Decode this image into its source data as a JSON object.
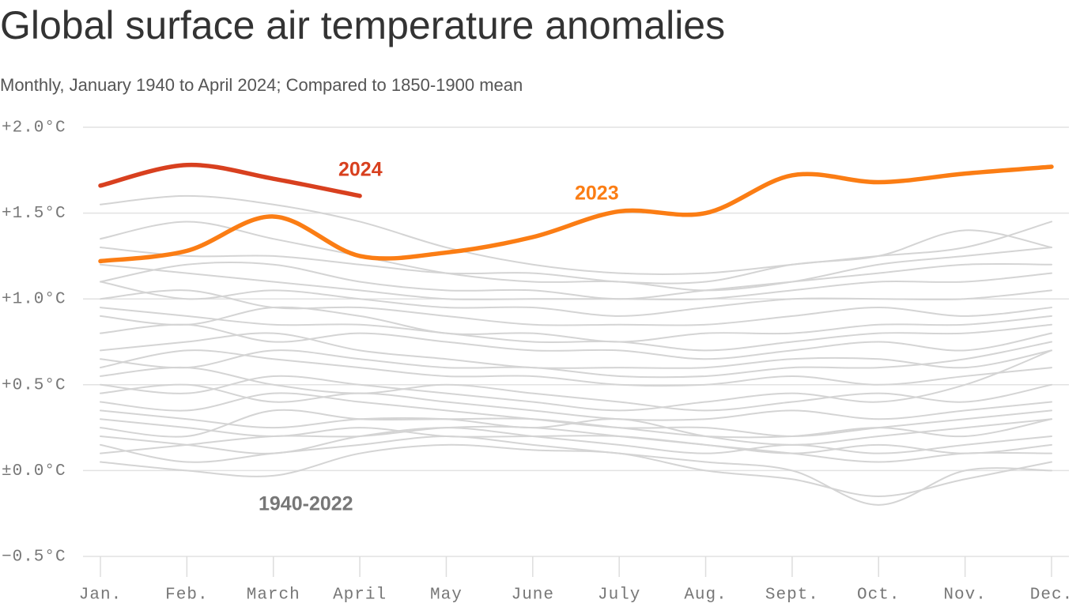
{
  "chart_data": {
    "type": "line",
    "title": "Global surface air temperature anomalies",
    "subtitle": "Monthly, January 1940 to April 2024; Compared to 1850-1900 mean",
    "categories": [
      "Jan.",
      "Feb.",
      "March",
      "April",
      "May",
      "June",
      "July",
      "Aug.",
      "Sept.",
      "Oct.",
      "Nov.",
      "Dec."
    ],
    "ylim": [
      -0.5,
      2.0
    ],
    "yticks": [
      {
        "value": 2.0,
        "label": "+2.0°C"
      },
      {
        "value": 1.5,
        "label": "+1.5°C"
      },
      {
        "value": 1.0,
        "label": "+1.0°C"
      },
      {
        "value": 0.5,
        "label": "+0.5°C"
      },
      {
        "value": 0.0,
        "label": "±0.0°C"
      },
      {
        "value": -0.5,
        "label": "−0.5°C"
      }
    ],
    "grid": true,
    "series": [
      {
        "name": "2024",
        "color": "#d8401f",
        "values": [
          1.66,
          1.78,
          1.7,
          1.6,
          null,
          null,
          null,
          null,
          null,
          null,
          null,
          null
        ]
      },
      {
        "name": "2023",
        "color": "#fb7d14",
        "values": [
          1.22,
          1.28,
          1.48,
          1.25,
          1.27,
          1.36,
          1.51,
          1.5,
          1.72,
          1.68,
          1.73,
          1.77
        ]
      }
    ],
    "background_label": "1940-2022",
    "background_color": "#d4d4d4",
    "background_series": [
      {
        "values": [
          0.05,
          0.0,
          -0.03,
          0.1,
          0.15,
          0.12,
          0.1,
          0.0,
          -0.05,
          -0.15,
          -0.05,
          0.05
        ]
      },
      {
        "values": [
          0.2,
          0.15,
          0.1,
          0.2,
          0.25,
          0.2,
          0.15,
          0.1,
          0.15,
          0.1,
          0.15,
          0.2
        ]
      },
      {
        "values": [
          0.35,
          0.3,
          0.25,
          0.3,
          0.3,
          0.25,
          0.3,
          0.2,
          0.15,
          0.2,
          0.25,
          0.3
        ]
      },
      {
        "values": [
          0.45,
          0.5,
          0.4,
          0.45,
          0.4,
          0.35,
          0.3,
          0.3,
          0.35,
          0.3,
          0.35,
          0.4
        ]
      },
      {
        "values": [
          0.25,
          0.2,
          0.35,
          0.3,
          0.3,
          0.3,
          0.25,
          0.2,
          0.2,
          0.25,
          0.2,
          0.3
        ]
      },
      {
        "values": [
          0.55,
          0.6,
          0.5,
          0.45,
          0.5,
          0.45,
          0.4,
          0.35,
          0.4,
          0.45,
          0.4,
          0.5
        ]
      },
      {
        "values": [
          0.6,
          0.7,
          0.65,
          0.6,
          0.55,
          0.55,
          0.5,
          0.5,
          0.55,
          0.5,
          0.55,
          0.6
        ]
      },
      {
        "values": [
          0.7,
          0.75,
          0.8,
          0.7,
          0.65,
          0.6,
          0.6,
          0.6,
          0.65,
          0.65,
          0.6,
          0.7
        ]
      },
      {
        "values": [
          0.8,
          0.85,
          0.75,
          0.8,
          0.75,
          0.7,
          0.7,
          0.65,
          0.7,
          0.75,
          0.7,
          0.8
        ]
      },
      {
        "values": [
          0.9,
          0.85,
          0.95,
          0.9,
          0.8,
          0.8,
          0.75,
          0.8,
          0.8,
          0.85,
          0.85,
          0.9
        ]
      },
      {
        "values": [
          1.0,
          1.05,
          0.95,
          0.95,
          0.9,
          0.85,
          0.85,
          0.85,
          0.9,
          0.95,
          0.9,
          0.95
        ]
      },
      {
        "values": [
          1.1,
          1.0,
          1.05,
          1.0,
          0.95,
          0.95,
          0.9,
          0.95,
          1.0,
          1.0,
          1.0,
          1.05
        ]
      },
      {
        "values": [
          1.2,
          1.15,
          1.1,
          1.05,
          1.0,
          1.0,
          1.0,
          1.0,
          1.05,
          1.1,
          1.1,
          1.15
        ]
      },
      {
        "values": [
          1.35,
          1.45,
          1.35,
          1.25,
          1.15,
          1.1,
          1.1,
          1.05,
          1.1,
          1.2,
          1.25,
          1.3
        ]
      },
      {
        "values": [
          1.55,
          1.6,
          1.55,
          1.45,
          1.3,
          1.2,
          1.15,
          1.15,
          1.2,
          1.25,
          1.3,
          1.45
        ]
      },
      {
        "values": [
          1.3,
          1.25,
          1.25,
          1.2,
          1.15,
          1.15,
          1.1,
          1.1,
          1.2,
          1.25,
          1.4,
          1.3
        ]
      },
      {
        "values": [
          0.15,
          0.05,
          0.1,
          0.15,
          0.2,
          0.15,
          0.1,
          0.05,
          0.0,
          -0.2,
          0.0,
          0.0
        ]
      },
      {
        "values": [
          0.4,
          0.35,
          0.45,
          0.4,
          0.35,
          0.3,
          0.25,
          0.25,
          0.2,
          0.25,
          0.3,
          0.35
        ]
      },
      {
        "values": [
          0.5,
          0.45,
          0.55,
          0.5,
          0.45,
          0.4,
          0.35,
          0.4,
          0.45,
          0.4,
          0.5,
          0.7
        ]
      },
      {
        "values": [
          0.3,
          0.25,
          0.2,
          0.25,
          0.2,
          0.2,
          0.2,
          0.15,
          0.1,
          0.15,
          0.1,
          0.15
        ]
      },
      {
        "values": [
          0.65,
          0.6,
          0.7,
          0.65,
          0.6,
          0.6,
          0.55,
          0.55,
          0.6,
          0.6,
          0.65,
          0.75
        ]
      },
      {
        "values": [
          0.95,
          0.9,
          0.85,
          0.85,
          0.8,
          0.75,
          0.75,
          0.7,
          0.75,
          0.8,
          0.8,
          0.85
        ]
      },
      {
        "values": [
          0.1,
          0.15,
          0.2,
          0.2,
          0.25,
          0.25,
          0.2,
          0.15,
          0.1,
          0.05,
          0.1,
          0.1
        ]
      },
      {
        "values": [
          1.1,
          1.2,
          1.2,
          1.1,
          1.05,
          1.05,
          1.0,
          1.05,
          1.1,
          1.15,
          1.2,
          1.2
        ]
      }
    ]
  }
}
